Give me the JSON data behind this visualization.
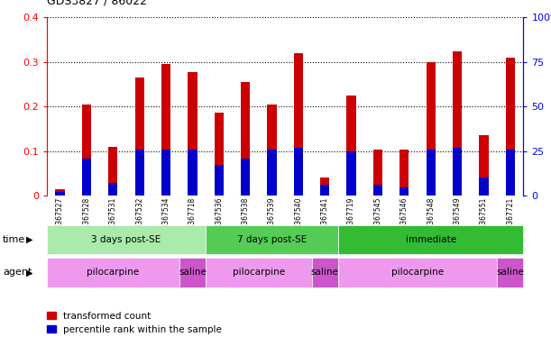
{
  "title": "GDS3827 / 86022",
  "samples": [
    "GSM367527",
    "GSM367528",
    "GSM367531",
    "GSM367532",
    "GSM367534",
    "GSM367718",
    "GSM367536",
    "GSM367538",
    "GSM367539",
    "GSM367540",
    "GSM367541",
    "GSM367719",
    "GSM367545",
    "GSM367546",
    "GSM367548",
    "GSM367549",
    "GSM367551",
    "GSM367721"
  ],
  "red_values": [
    0.015,
    0.205,
    0.11,
    0.265,
    0.295,
    0.278,
    0.185,
    0.255,
    0.205,
    0.32,
    0.04,
    0.225,
    0.103,
    0.103,
    0.3,
    0.323,
    0.135,
    0.31
  ],
  "blue_values": [
    0.008,
    0.083,
    0.028,
    0.103,
    0.103,
    0.103,
    0.068,
    0.083,
    0.103,
    0.108,
    0.025,
    0.1,
    0.025,
    0.018,
    0.103,
    0.108,
    0.04,
    0.103
  ],
  "time_groups": [
    {
      "label": "3 days post-SE",
      "start": 0,
      "end": 6,
      "color": "#aaeaaa"
    },
    {
      "label": "7 days post-SE",
      "start": 6,
      "end": 11,
      "color": "#55cc55"
    },
    {
      "label": "immediate",
      "start": 11,
      "end": 18,
      "color": "#33bb33"
    }
  ],
  "agent_groups": [
    {
      "label": "pilocarpine",
      "start": 0,
      "end": 5,
      "color": "#ee99ee"
    },
    {
      "label": "saline",
      "start": 5,
      "end": 6,
      "color": "#cc55cc"
    },
    {
      "label": "pilocarpine",
      "start": 6,
      "end": 10,
      "color": "#ee99ee"
    },
    {
      "label": "saline",
      "start": 10,
      "end": 11,
      "color": "#cc55cc"
    },
    {
      "label": "pilocarpine",
      "start": 11,
      "end": 17,
      "color": "#ee99ee"
    },
    {
      "label": "saline",
      "start": 17,
      "end": 18,
      "color": "#cc55cc"
    }
  ],
  "bar_color_red": "#cc0000",
  "bar_color_blue": "#0000cc",
  "ylim": [
    0,
    0.4
  ],
  "y2lim": [
    0,
    100
  ],
  "yticks": [
    0,
    0.1,
    0.2,
    0.3,
    0.4
  ],
  "ytick_labels": [
    "0",
    "0.1",
    "0.2",
    "0.3",
    "0.4"
  ],
  "y2ticks": [
    0,
    25,
    50,
    75,
    100
  ],
  "y2tick_labels": [
    "0",
    "25",
    "50",
    "75",
    "100%"
  ],
  "legend_red": "transformed count",
  "legend_blue": "percentile rank within the sample",
  "bar_width": 0.35
}
